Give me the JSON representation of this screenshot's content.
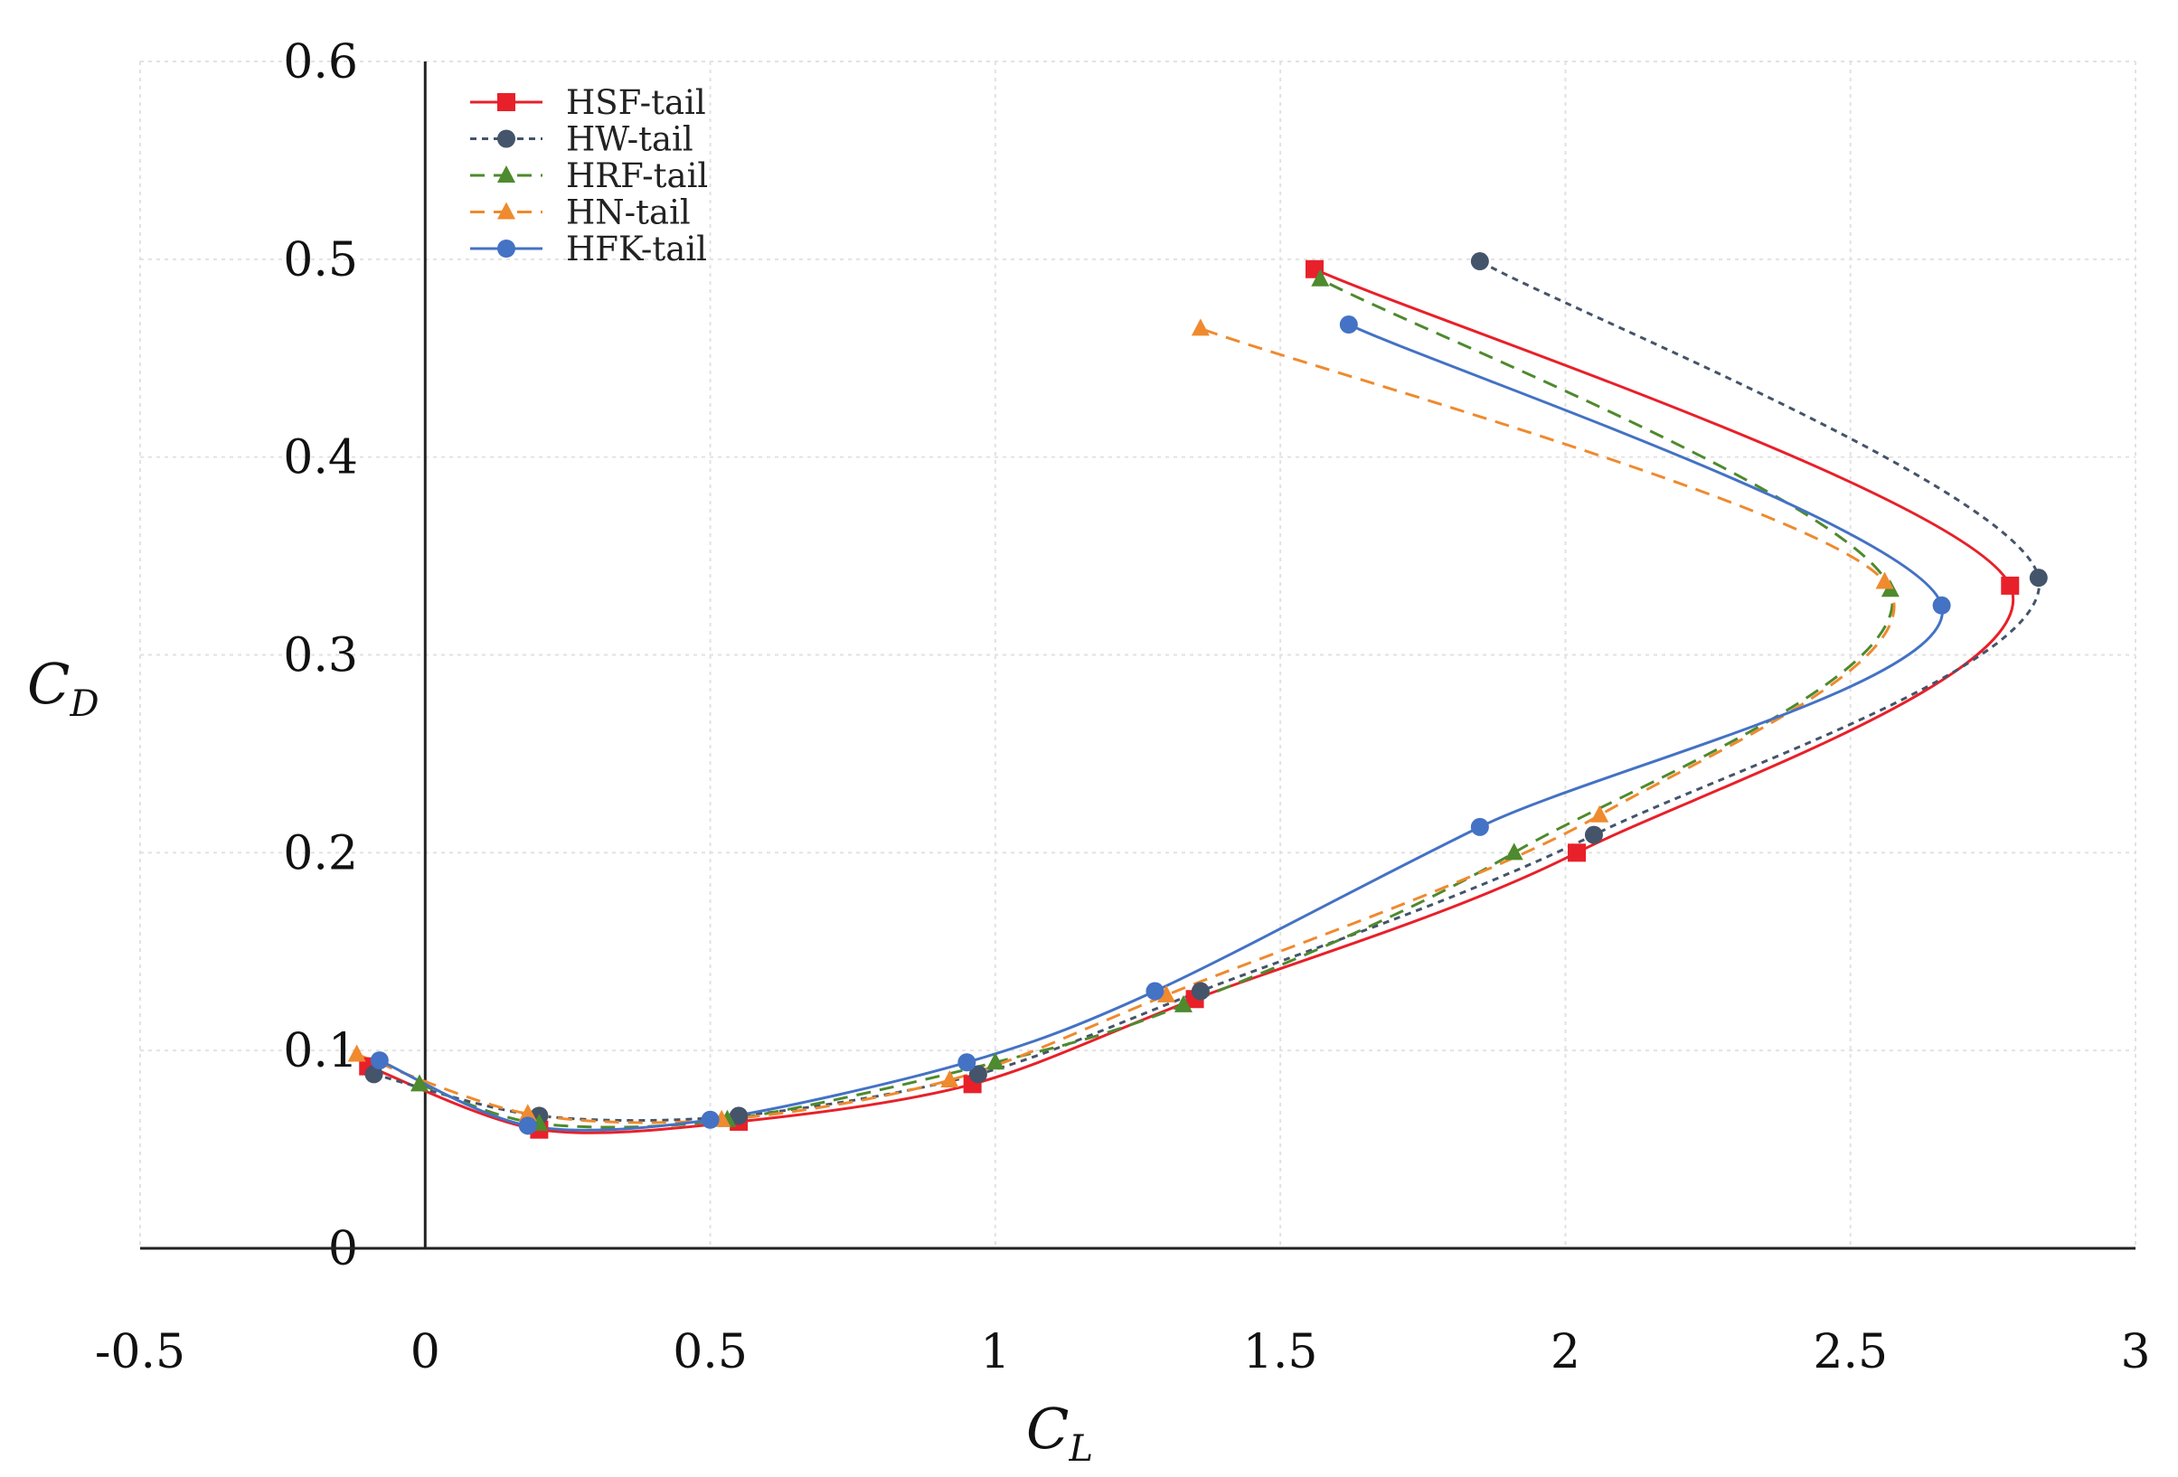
{
  "chart_data": {
    "type": "line",
    "title": "",
    "xlabel": {
      "base": "C",
      "sub": "L"
    },
    "ylabel": {
      "base": "C",
      "sub": "D"
    },
    "xlim": [
      -0.5,
      3
    ],
    "ylim": [
      0,
      0.6
    ],
    "x_ticks": [
      "-0.5",
      "0",
      "0.5",
      "1",
      "1.5",
      "2",
      "2.5",
      "3"
    ],
    "y_ticks": [
      "0",
      "0.1",
      "0.2",
      "0.3",
      "0.4",
      "0.5",
      "0.6"
    ],
    "grid": true,
    "legend_position": "top-left",
    "series": [
      {
        "name": "HSF-tail",
        "color": "#e8202a",
        "dash": "solid",
        "marker": "square",
        "points": [
          [
            -0.1,
            0.092
          ],
          [
            0.2,
            0.06
          ],
          [
            0.55,
            0.064
          ],
          [
            0.96,
            0.083
          ],
          [
            1.35,
            0.126
          ],
          [
            2.02,
            0.2
          ],
          [
            2.78,
            0.335
          ],
          [
            1.56,
            0.495
          ]
        ]
      },
      {
        "name": "HW-tail",
        "color": "#44546a",
        "dash": "dotted",
        "marker": "circle",
        "points": [
          [
            -0.09,
            0.088
          ],
          [
            0.2,
            0.067
          ],
          [
            0.55,
            0.067
          ],
          [
            0.97,
            0.088
          ],
          [
            1.36,
            0.13
          ],
          [
            2.05,
            0.209
          ],
          [
            2.83,
            0.339
          ],
          [
            1.85,
            0.499
          ]
        ]
      },
      {
        "name": "HRF-tail",
        "color": "#4e8a2e",
        "dash": "dashed",
        "marker": "triangle",
        "points": [
          [
            -0.01,
            0.083
          ],
          [
            0.2,
            0.063
          ],
          [
            0.53,
            0.065
          ],
          [
            1.0,
            0.094
          ],
          [
            1.33,
            0.123
          ],
          [
            1.91,
            0.2
          ],
          [
            2.57,
            0.333
          ],
          [
            1.57,
            0.49
          ]
        ]
      },
      {
        "name": "HN-tail",
        "color": "#ef8a2e",
        "dash": "dashed",
        "marker": "triangle",
        "points": [
          [
            -0.12,
            0.098
          ],
          [
            0.18,
            0.068
          ],
          [
            0.52,
            0.065
          ],
          [
            0.92,
            0.085
          ],
          [
            1.3,
            0.128
          ],
          [
            2.06,
            0.219
          ],
          [
            2.56,
            0.337
          ],
          [
            1.36,
            0.465
          ]
        ]
      },
      {
        "name": "HFK-tail",
        "color": "#4472c4",
        "dash": "solid",
        "marker": "circle",
        "points": [
          [
            -0.08,
            0.095
          ],
          [
            0.18,
            0.062
          ],
          [
            0.5,
            0.065
          ],
          [
            0.95,
            0.094
          ],
          [
            1.28,
            0.13
          ],
          [
            1.85,
            0.213
          ],
          [
            2.66,
            0.325
          ],
          [
            1.62,
            0.467
          ]
        ]
      }
    ]
  }
}
